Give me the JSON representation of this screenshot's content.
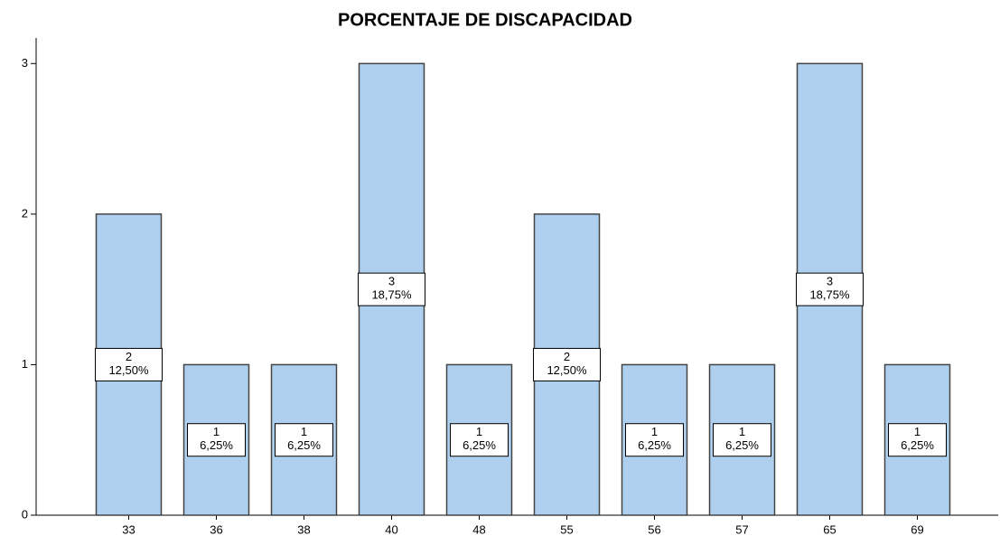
{
  "chart_data": {
    "type": "bar",
    "title": "PORCENTAJE DE DISCAPACIDAD",
    "categories": [
      "33",
      "36",
      "38",
      "40",
      "48",
      "55",
      "56",
      "57",
      "65",
      "69"
    ],
    "values": [
      2,
      1,
      1,
      3,
      1,
      2,
      1,
      1,
      3,
      1
    ],
    "percent_values": [
      12.5,
      6.25,
      6.25,
      18.75,
      6.25,
      12.5,
      6.25,
      6.25,
      18.75,
      6.25
    ],
    "percent_labels": [
      "12,50%",
      "6,25%",
      "6,25%",
      "18,75%",
      "6,25%",
      "12,50%",
      "6,25%",
      "6,25%",
      "18,75%",
      "6,25%"
    ],
    "color": "#aecfee",
    "ylim": [
      0,
      3.17
    ],
    "yticks": [
      0,
      1,
      2,
      3
    ],
    "grid": false
  }
}
